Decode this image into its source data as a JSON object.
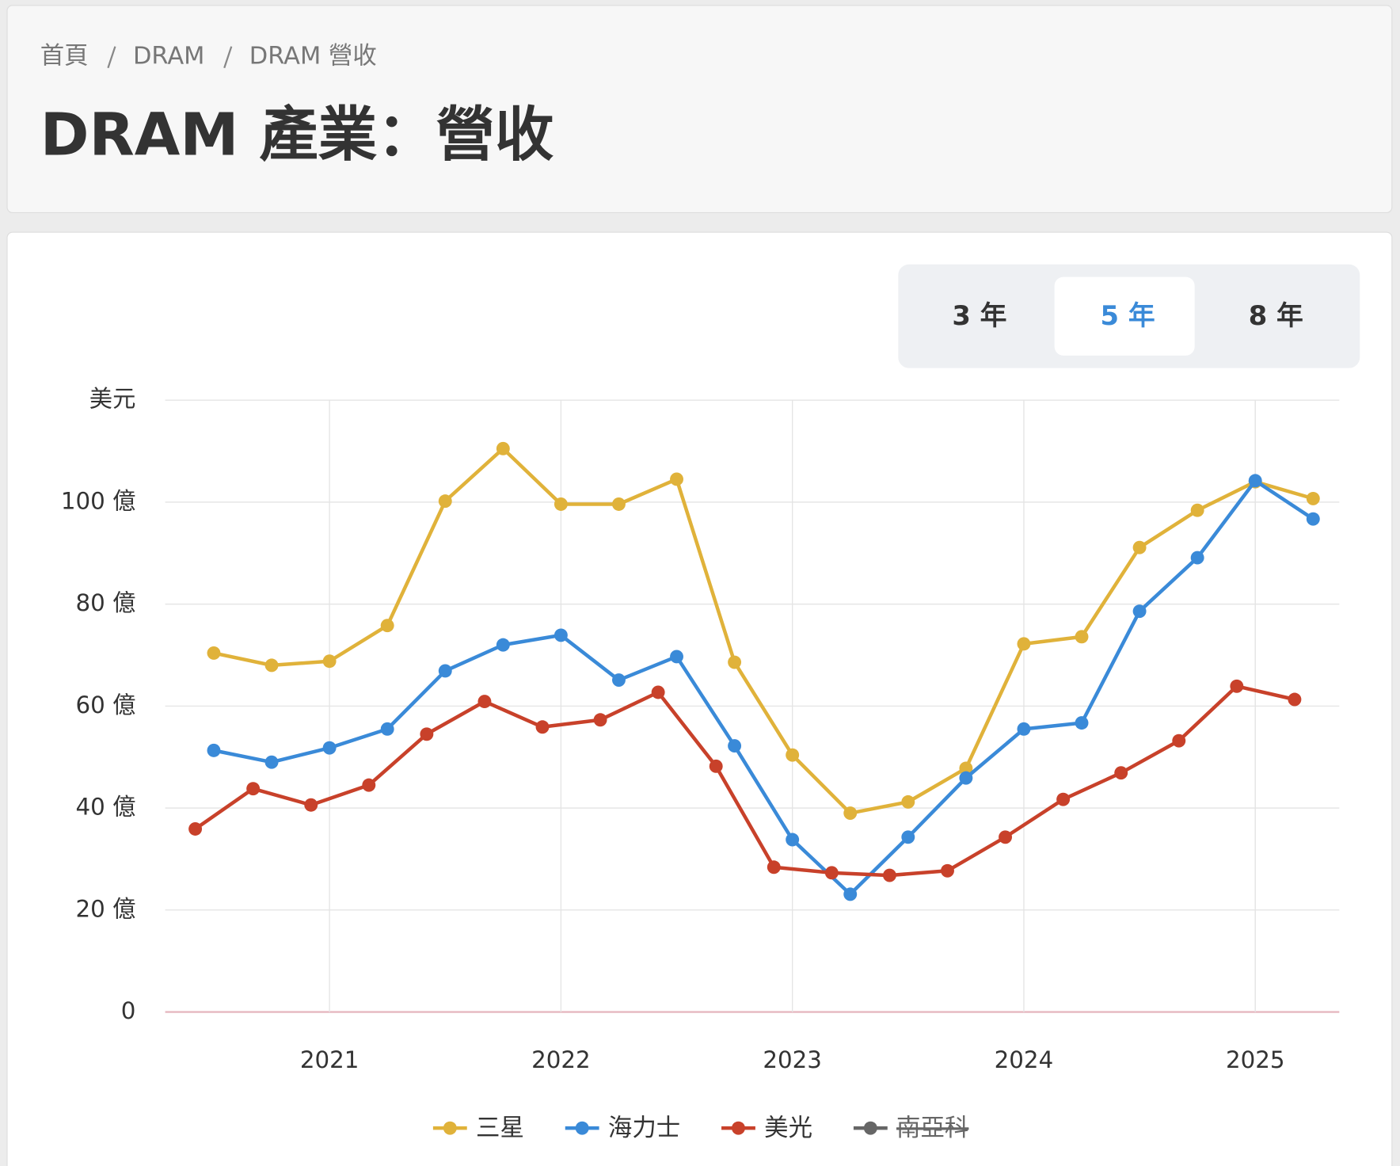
{
  "header": {
    "breadcrumb": [
      "首頁",
      "DRAM",
      "DRAM 營收"
    ],
    "title": "DRAM 產業：營收"
  },
  "range_buttons": {
    "options": [
      "3 年",
      "5 年",
      "8 年"
    ],
    "active": 1
  },
  "chart_data": {
    "type": "line",
    "y_label": "美元",
    "xlim": [
      2020.29,
      2025.363
    ],
    "xticks": [
      2021,
      2022,
      2023,
      2024,
      2025
    ],
    "ylim": [
      0,
      120
    ],
    "yticks": [
      0,
      {
        "value": 20,
        "label": "20 億"
      },
      {
        "value": 40,
        "label": "40 億"
      },
      {
        "value": 60,
        "label": "60 億"
      },
      {
        "value": 80,
        "label": "80 億"
      },
      {
        "value": 100,
        "label": "100 億"
      },
      {
        "value": 120,
        "label": ""
      }
    ],
    "grid": true,
    "series": [
      {
        "name": "三星",
        "color": "#e0b23a",
        "x": [
          2020.5,
          2020.75,
          2021,
          2021.25,
          2021.5,
          2021.75,
          2022,
          2022.25,
          2022.5,
          2022.75,
          2023,
          2023.25,
          2023.5,
          2023.75,
          2024,
          2024.25,
          2024.5,
          2024.75,
          2025,
          2025.25
        ],
        "values": [
          70.4,
          68,
          68.8,
          75.8,
          100.2,
          110.5,
          99.6,
          99.6,
          104.5,
          68.6,
          50.4,
          39,
          41.2,
          47.8,
          72.2,
          73.6,
          91.1,
          98.4,
          104,
          100.7
        ]
      },
      {
        "name": "海力士",
        "color": "#3a8ad8",
        "x": [
          2020.5,
          2020.75,
          2021,
          2021.25,
          2021.5,
          2021.75,
          2022,
          2022.25,
          2022.5,
          2022.75,
          2023,
          2023.25,
          2023.5,
          2023.75,
          2024,
          2024.25,
          2024.5,
          2024.75,
          2025,
          2025.25
        ],
        "values": [
          51.3,
          49,
          51.8,
          55.5,
          66.9,
          72,
          73.9,
          65.1,
          69.7,
          52.2,
          33.8,
          23.1,
          34.3,
          45.9,
          55.5,
          56.7,
          78.6,
          89.1,
          104.2,
          96.7
        ]
      },
      {
        "name": "美光",
        "color": "#c8412a",
        "x": [
          2020.42,
          2020.67,
          2020.92,
          2021.17,
          2021.42,
          2021.67,
          2021.92,
          2022.17,
          2022.42,
          2022.67,
          2022.92,
          2023.17,
          2023.42,
          2023.67,
          2023.92,
          2024.17,
          2024.42,
          2024.67,
          2024.92,
          2025.17
        ],
        "values": [
          35.9,
          43.8,
          40.6,
          44.5,
          54.5,
          60.9,
          55.9,
          57.3,
          62.7,
          48.2,
          28.4,
          27.3,
          26.8,
          27.7,
          34.3,
          41.7,
          46.9,
          53.2,
          63.9,
          61.3
        ]
      }
    ],
    "hidden_series": [
      {
        "name": "南亞科",
        "color": "#666666"
      }
    ]
  }
}
